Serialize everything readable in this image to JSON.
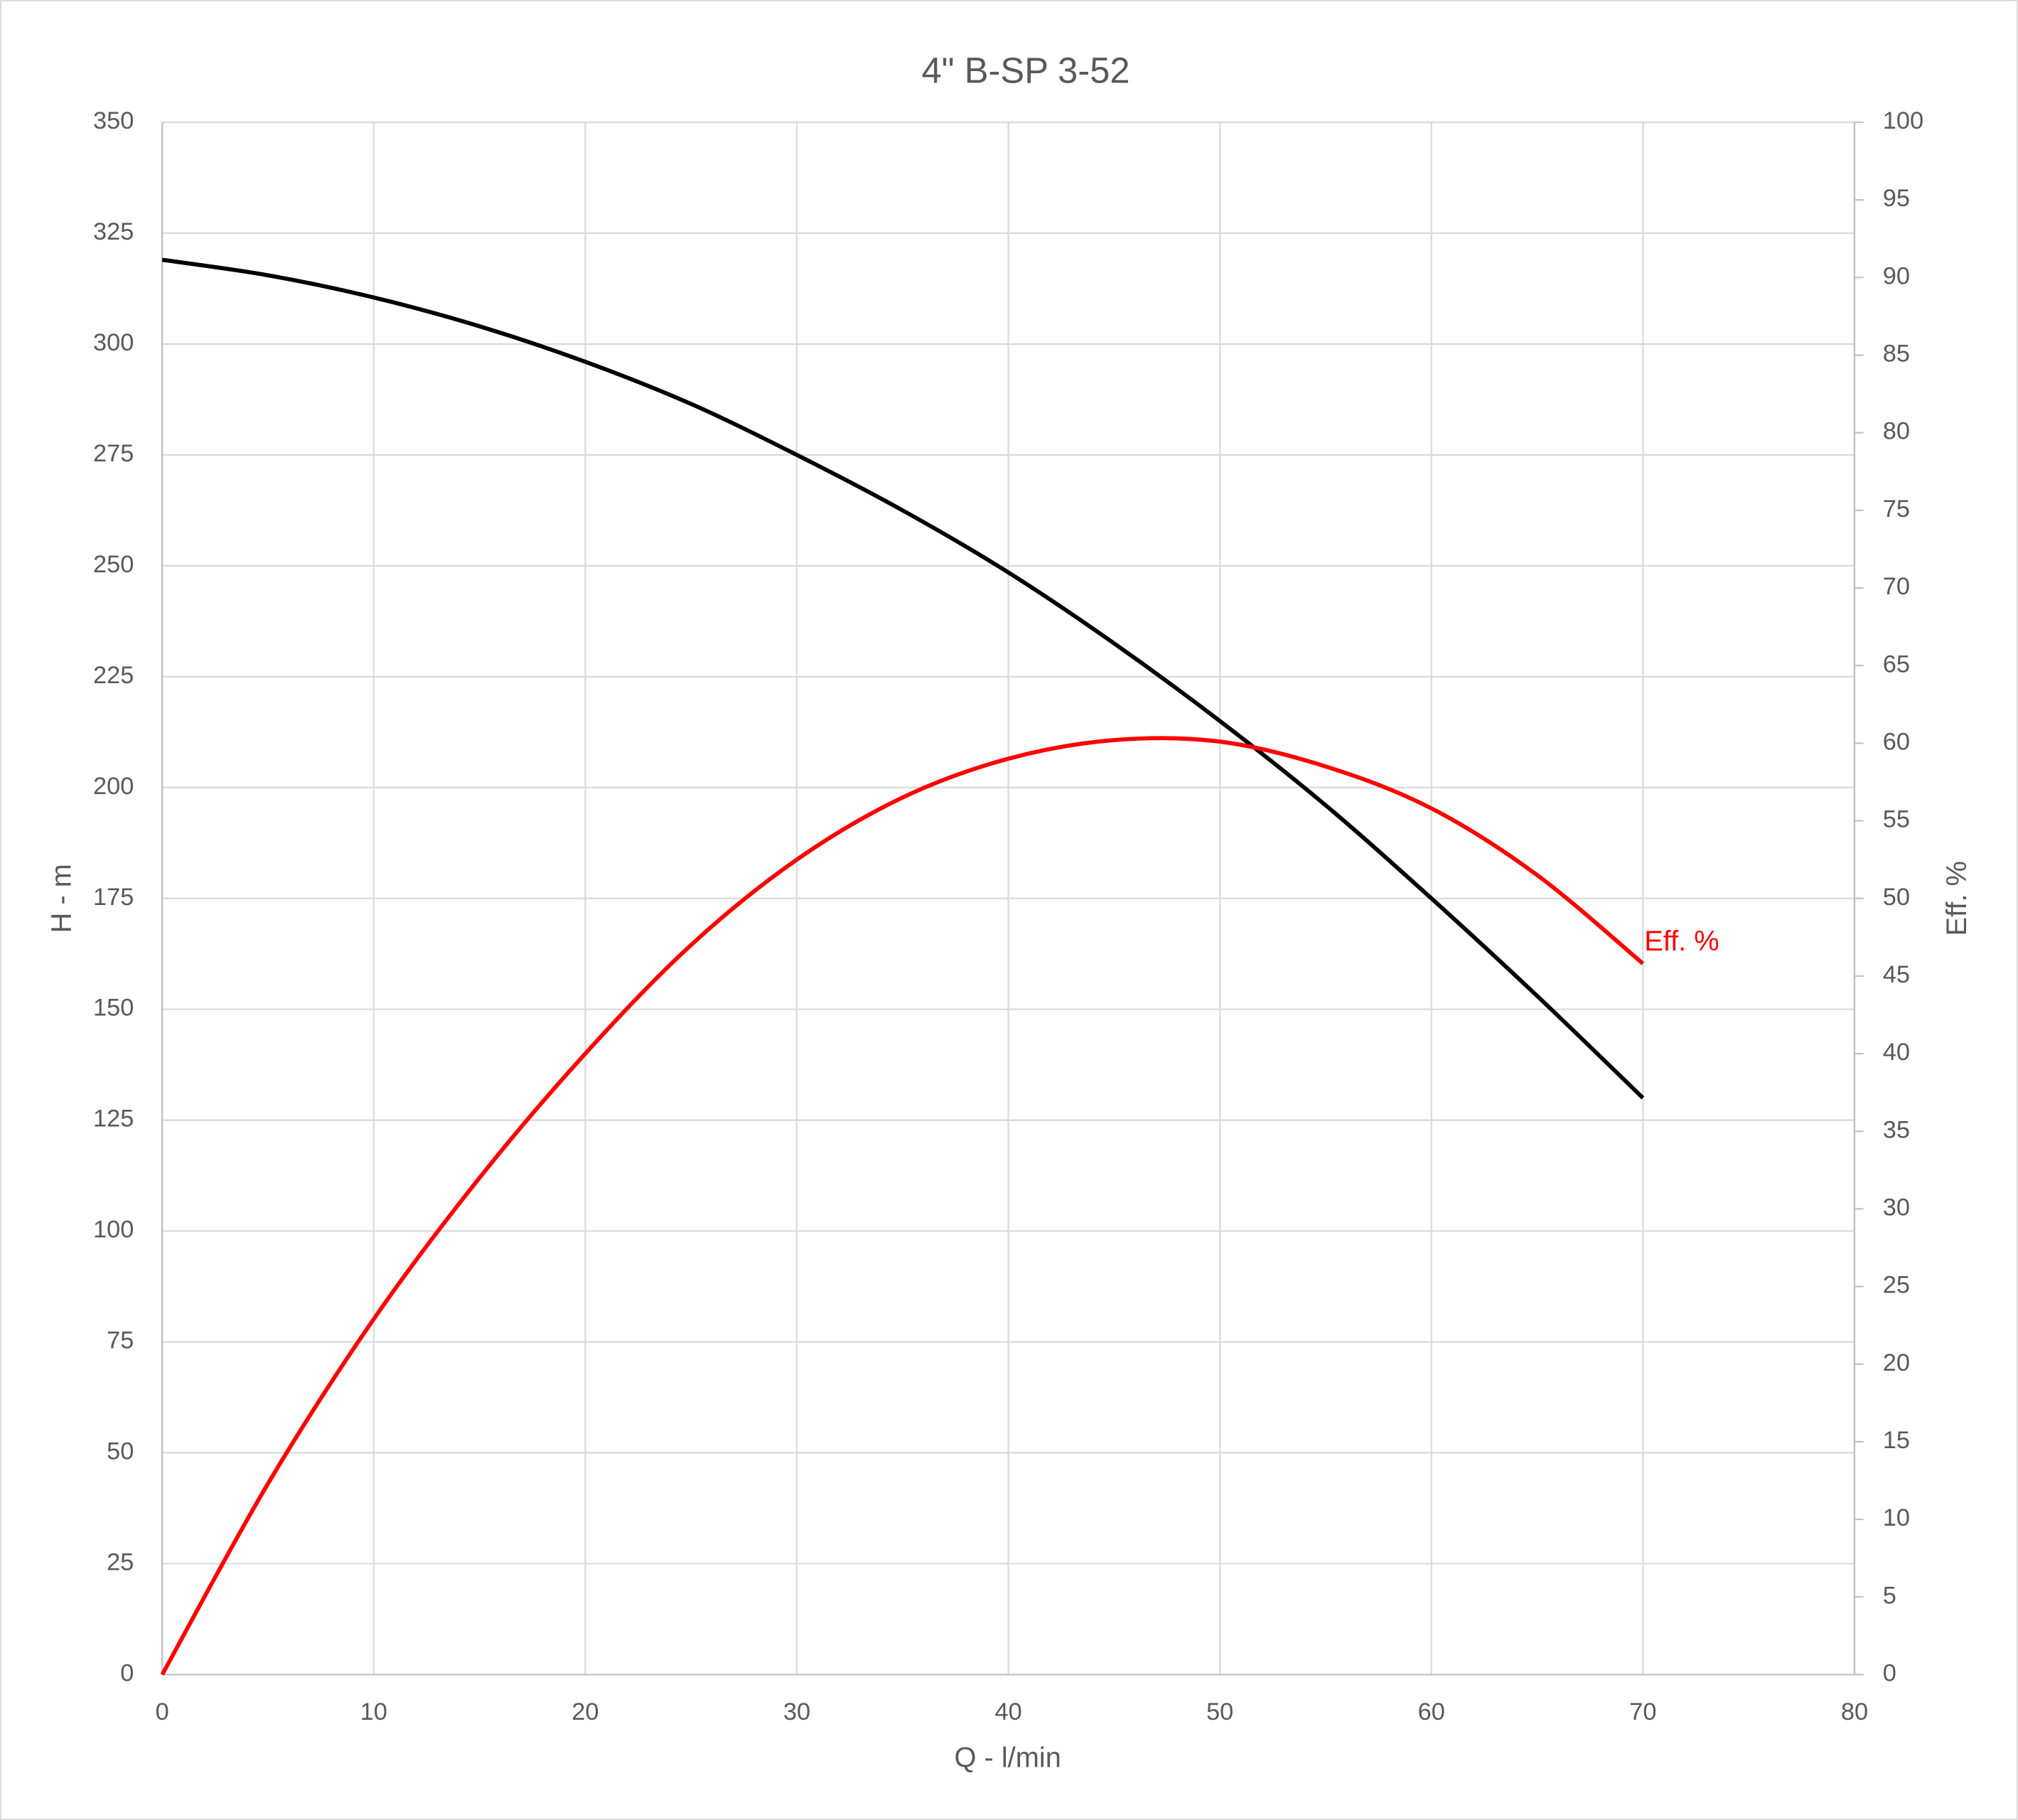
{
  "chart_data": {
    "type": "line",
    "title": "4\" B-SP 3-52",
    "xlabel": "Q - l/min",
    "ylabel": "H - m",
    "y2label": "Eff. %",
    "x": [
      0,
      5,
      10,
      15,
      20,
      25,
      30,
      35,
      40,
      45,
      50,
      55,
      60,
      65,
      70
    ],
    "series": [
      {
        "color": "#000000",
        "values": [
          319,
          315.5,
          310.5,
          304,
          296,
          286.5,
          275,
          262.5,
          248.5,
          232.5,
          215,
          196,
          175,
          153,
          130
        ]
      },
      {
        "name": "Eff. %",
        "color": "#ff0000",
        "axis": "y2",
        "values": [
          0,
          12.3,
          22.9,
          32,
          40,
          47,
          52.5,
          56.5,
          59,
          60.2,
          60.1,
          58.5,
          55.8,
          51.5,
          45.8
        ]
      }
    ],
    "xlim": [
      0,
      80
    ],
    "xticks": [
      0,
      10,
      20,
      30,
      40,
      50,
      60,
      70,
      80
    ],
    "ylim": [
      0,
      350
    ],
    "yticks": [
      0,
      25,
      50,
      75,
      100,
      125,
      150,
      175,
      200,
      225,
      250,
      275,
      300,
      325,
      350
    ],
    "y2lim": [
      0,
      100
    ],
    "y2ticks": [
      0,
      5,
      10,
      15,
      20,
      25,
      30,
      35,
      40,
      45,
      50,
      55,
      60,
      65,
      70,
      75,
      80,
      85,
      90,
      95,
      100
    ],
    "grid": true
  }
}
